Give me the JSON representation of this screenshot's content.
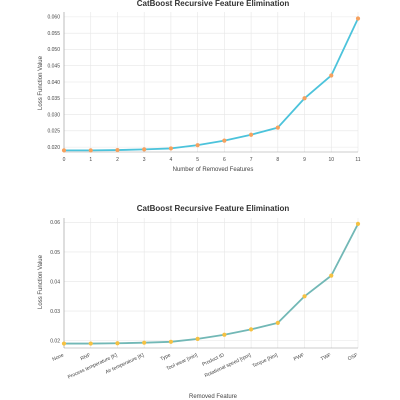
{
  "chart_data": [
    {
      "type": "line",
      "title": "CatBoost Recursive Feature Elimination",
      "xlabel": "Number of Removed Features",
      "ylabel": "Loss Function Value",
      "x": [
        0,
        1,
        2,
        3,
        4,
        5,
        6,
        7,
        8,
        9,
        10,
        11
      ],
      "x_tick_labels": [
        "0",
        "1",
        "2",
        "3",
        "4",
        "5",
        "6",
        "7",
        "8",
        "9",
        "10",
        "11"
      ],
      "y_tick_labels": [
        "0.020",
        "0.025",
        "0.030",
        "0.035",
        "0.040",
        "0.045",
        "0.050",
        "0.055",
        "0.060"
      ],
      "y_ticks": [
        0.02,
        0.025,
        0.03,
        0.035,
        0.04,
        0.045,
        0.05,
        0.055,
        0.06
      ],
      "ylim": [
        0.0185,
        0.0615
      ],
      "series": [
        {
          "values": [
            0.019,
            0.019,
            0.0191,
            0.0193,
            0.0196,
            0.0206,
            0.022,
            0.0238,
            0.026,
            0.035,
            0.042,
            0.0595
          ],
          "line_color": "#4cc3db",
          "marker_color": "#f6a15e"
        }
      ],
      "grid": true
    },
    {
      "type": "line",
      "title": "CatBoost Recursive Feature Elimination",
      "xlabel": "Removed Feature",
      "ylabel": "Loss Function Value",
      "categories": [
        "None",
        "RNF",
        "Process temperature [K]",
        "Air temperature [K]",
        "Type",
        "Tool wear [min]",
        "Product ID",
        "Rotational speed [rpm]",
        "Torque [Nm]",
        "PWF",
        "TWF",
        "OSF"
      ],
      "y_tick_labels": [
        "0.02",
        "0.03",
        "0.04",
        "0.05",
        "0.06"
      ],
      "y_ticks": [
        0.02,
        0.03,
        0.04,
        0.05,
        0.06
      ],
      "ylim": [
        0.0175,
        0.0615
      ],
      "series": [
        {
          "values": [
            0.019,
            0.019,
            0.0191,
            0.0193,
            0.0196,
            0.0206,
            0.022,
            0.0238,
            0.026,
            0.035,
            0.042,
            0.0595
          ],
          "line_color": "#72b8b6",
          "marker_color": "#f5c142"
        }
      ],
      "grid": true
    }
  ]
}
